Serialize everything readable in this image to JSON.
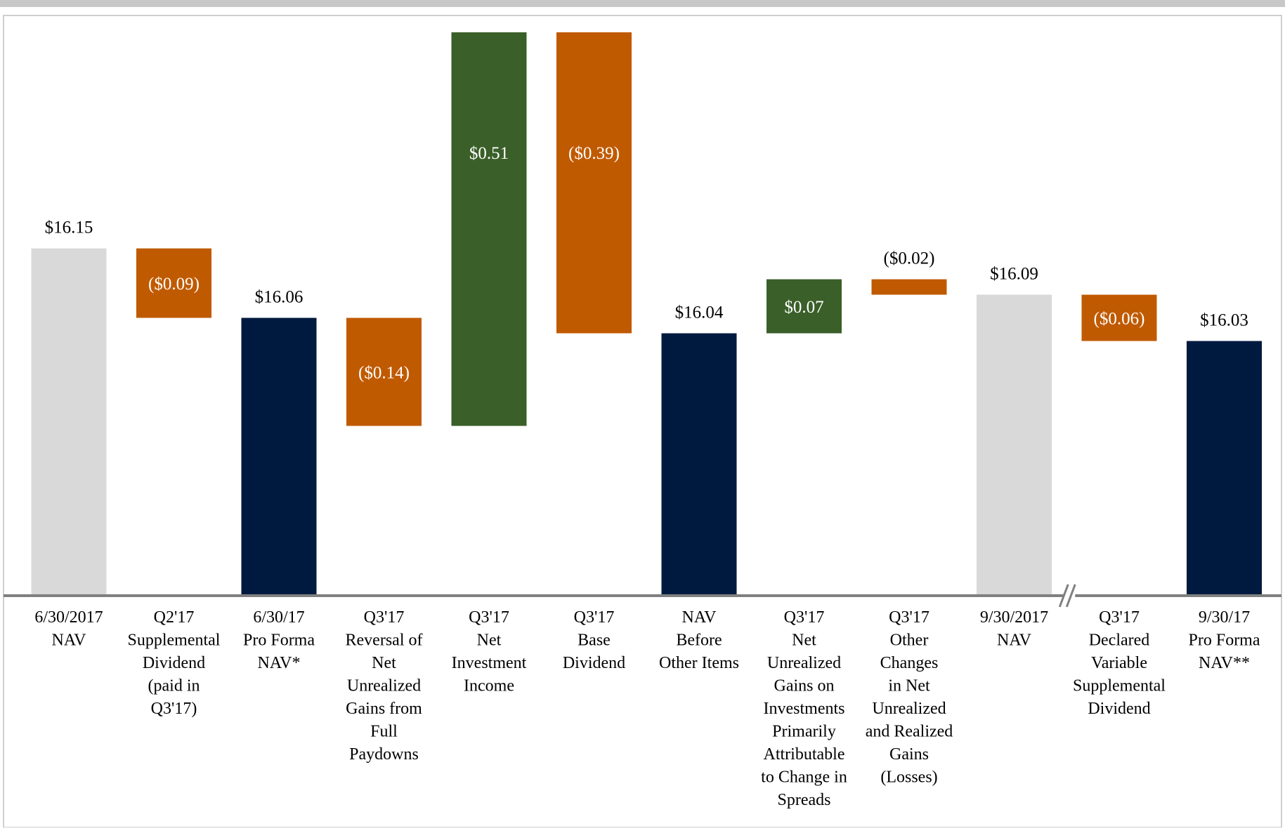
{
  "chart_data": {
    "type": "waterfall",
    "title": "",
    "colors": {
      "total_light": "#d9d9d9",
      "total_dark": "#001a3f",
      "decrease": "#c05a00",
      "increase": "#3a5f29",
      "axis": "#808080",
      "frame": "#bfbfbf",
      "top_band": "#c8c8c8"
    },
    "bars": [
      {
        "label_lines": [
          "6/30/2017",
          "NAV"
        ],
        "kind": "total",
        "shade": "light",
        "start": 0,
        "end": 16.15,
        "value_label": "$16.15",
        "label_position": "above"
      },
      {
        "label_lines": [
          "Q2'17",
          "Supplemental",
          "Dividend",
          "(paid in",
          "Q3'17)"
        ],
        "kind": "decrease",
        "start": 16.15,
        "end": 16.06,
        "value_label": "($0.09)",
        "label_position": "inside"
      },
      {
        "label_lines": [
          "6/30/17",
          "Pro Forma",
          "NAV*"
        ],
        "kind": "total",
        "shade": "dark",
        "start": 0,
        "end": 16.06,
        "value_label": "$16.06",
        "label_position": "above"
      },
      {
        "label_lines": [
          "Q3'17",
          "Reversal of",
          "Net",
          "Unrealized",
          "Gains from",
          "Full",
          "Paydowns"
        ],
        "kind": "decrease",
        "start": 16.06,
        "end": 15.92,
        "value_label": "($0.14)",
        "label_position": "inside"
      },
      {
        "label_lines": [
          "Q3'17",
          "Net",
          "Investment",
          "Income"
        ],
        "kind": "increase",
        "start": 15.92,
        "end": 16.43,
        "value_label": "$0.51",
        "label_position": "inside_upper"
      },
      {
        "label_lines": [
          "Q3'17",
          "Base",
          "Dividend"
        ],
        "kind": "decrease",
        "start": 16.43,
        "end": 16.04,
        "value_label": "($0.39)",
        "label_position": "inside_upper"
      },
      {
        "label_lines": [
          "NAV",
          "Before",
          "Other Items"
        ],
        "kind": "total",
        "shade": "dark",
        "start": 0,
        "end": 16.04,
        "value_label": "$16.04",
        "label_position": "above"
      },
      {
        "label_lines": [
          "Q3'17",
          "Net",
          "Unrealized",
          "Gains on",
          "Investments",
          "Primarily",
          "Attributable",
          "to Change in",
          "Spreads"
        ],
        "kind": "increase",
        "start": 16.04,
        "end": 16.11,
        "value_label": "$0.07",
        "label_position": "inside"
      },
      {
        "label_lines": [
          "Q3'17",
          "Other",
          "Changes",
          "in Net",
          "Unrealized",
          "and Realized",
          "Gains",
          "(Losses)"
        ],
        "kind": "decrease",
        "start": 16.11,
        "end": 16.09,
        "value_label": "($0.02)",
        "label_position": "above"
      },
      {
        "label_lines": [
          "9/30/2017",
          "NAV"
        ],
        "kind": "total",
        "shade": "light",
        "start": 0,
        "end": 16.09,
        "value_label": "$16.09",
        "label_position": "above"
      },
      {
        "label_lines": [
          "Q3'17",
          "Declared",
          "Variable",
          "Supplemental",
          "Dividend"
        ],
        "kind": "decrease",
        "start": 16.09,
        "end": 16.03,
        "value_label": "($0.06)",
        "label_position": "inside"
      },
      {
        "label_lines": [
          "9/30/17",
          "Pro Forma",
          "NAV**"
        ],
        "kind": "total",
        "shade": "dark",
        "start": 0,
        "end": 16.03,
        "value_label": "$16.03",
        "label_position": "above"
      }
    ],
    "axis_break_before_index": 10
  }
}
